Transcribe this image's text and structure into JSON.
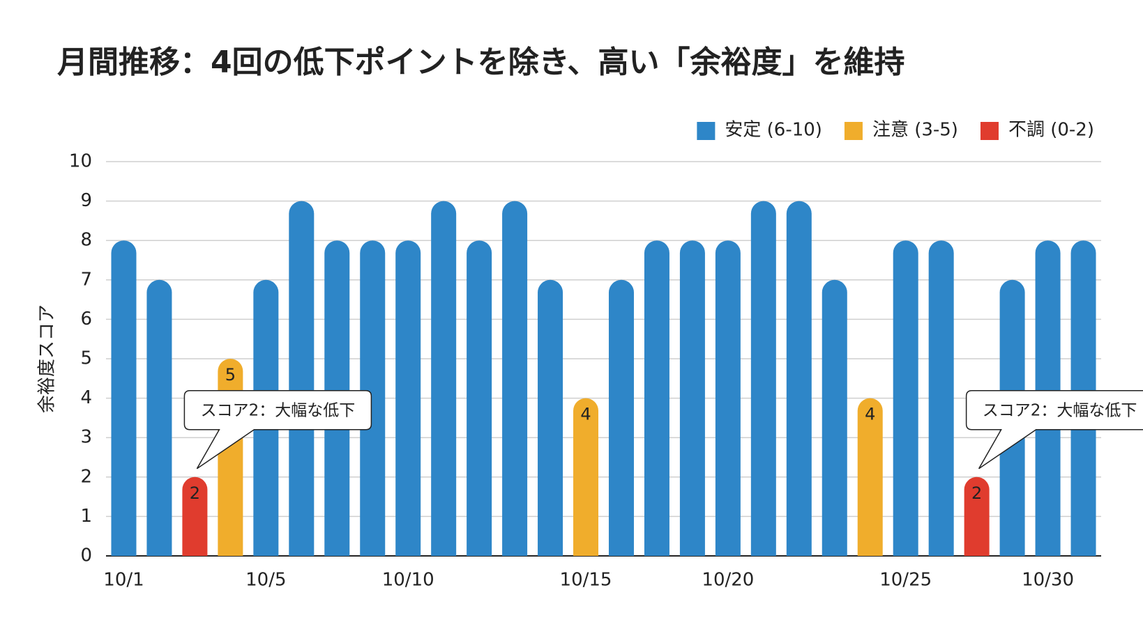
{
  "chart_data": {
    "type": "bar",
    "title": "月間推移：4回の低下ポイントを除き、高い「余裕度」を維持",
    "ylabel": "余裕度スコア",
    "categories": [
      "10/1",
      null,
      null,
      null,
      "10/5",
      null,
      null,
      null,
      "10/10",
      null,
      null,
      null,
      null,
      "10/15",
      null,
      null,
      null,
      "10/20",
      null,
      null,
      null,
      null,
      "10/25",
      null,
      null,
      null,
      "10/30",
      null
    ],
    "series": [
      {
        "name": "安定 (6-10)",
        "color": "#2e86c8",
        "labels": false,
        "values": [
          8,
          7,
          null,
          null,
          7,
          9,
          8,
          8,
          8,
          9,
          8,
          9,
          7,
          null,
          7,
          8,
          8,
          8,
          9,
          9,
          7,
          null,
          8,
          8,
          null,
          7,
          8,
          8
        ]
      },
      {
        "name": "注意 (3-5)",
        "color": "#f0ad2c",
        "labels": true,
        "values": [
          null,
          null,
          null,
          5,
          null,
          null,
          null,
          null,
          null,
          null,
          null,
          null,
          null,
          4,
          null,
          null,
          null,
          null,
          null,
          null,
          null,
          4,
          null,
          null,
          null,
          null,
          null,
          null
        ]
      },
      {
        "name": "不調 (0-2)",
        "color": "#e03c2e",
        "labels": true,
        "values": [
          null,
          null,
          2,
          null,
          null,
          null,
          null,
          null,
          null,
          null,
          null,
          null,
          null,
          null,
          null,
          null,
          null,
          null,
          null,
          null,
          null,
          null,
          null,
          null,
          2,
          null,
          null,
          null
        ]
      }
    ],
    "annotations": [
      {
        "text": "スコア2：大幅な低下",
        "series": 2,
        "point": 2
      },
      {
        "text": "スコア2：大幅な低下",
        "series": 2,
        "point": 24
      }
    ],
    "ylim": [
      0,
      10
    ],
    "yticks": [
      0,
      1,
      2,
      3,
      4,
      5,
      6,
      7,
      8,
      9,
      10
    ],
    "grid": true,
    "legend": "top-right"
  }
}
